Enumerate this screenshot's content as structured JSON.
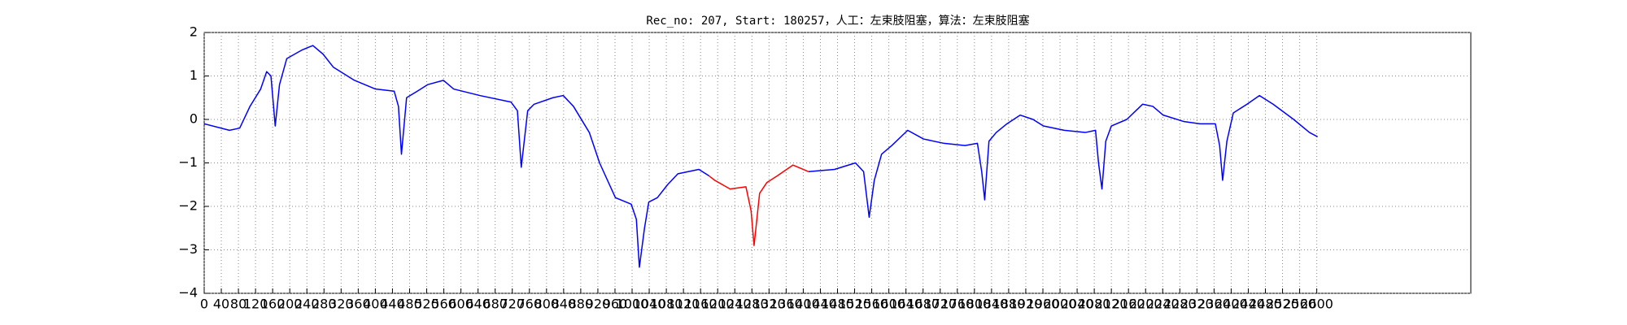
{
  "chart_data": {
    "type": "line",
    "title": "Rec_no: 207, Start: 180257，人工：左束肢阻塞，算法：左束肢阻塞",
    "x": [
      0,
      59,
      83,
      107,
      132,
      146,
      156,
      166,
      176,
      193,
      229,
      254,
      278,
      302,
      351,
      400,
      444,
      454,
      461,
      473,
      498,
      522,
      559,
      583,
      644,
      717,
      732,
      741,
      756,
      771,
      815,
      839,
      863,
      900,
      924,
      961,
      998,
      1010,
      1017,
      1029,
      1039,
      1059,
      1083,
      1107,
      1156,
      1180,
      1193,
      1229,
      1266,
      1278,
      1285,
      1298,
      1315,
      1339,
      1376,
      1412,
      1473,
      1522,
      1541,
      1554,
      1566,
      1583,
      1607,
      1644,
      1681,
      1729,
      1778,
      1807,
      1817,
      1824,
      1834,
      1851,
      1876,
      1907,
      1937,
      1961,
      2010,
      2059,
      2083,
      2090,
      2098,
      2107,
      2120,
      2156,
      2193,
      2217,
      2241,
      2290,
      2327,
      2363,
      2373,
      2380,
      2390,
      2405,
      2437,
      2466,
      2498,
      2546,
      2583,
      2602
    ],
    "series": [
      {
        "color": "#0000ff",
        "values": [
          -0.1,
          -0.25,
          -0.2,
          0.3,
          0.7,
          1.1,
          1.0,
          -0.15,
          0.8,
          1.4,
          1.6,
          1.7,
          1.5,
          1.2,
          0.9,
          0.7,
          0.65,
          0.3,
          -0.8,
          0.5,
          0.65,
          0.8,
          0.9,
          0.7,
          0.55,
          0.4,
          0.2,
          -1.1,
          0.2,
          0.35,
          0.5,
          0.55,
          0.3,
          -0.3,
          -1.0,
          -1.8,
          -1.95,
          -2.3,
          -3.4,
          -2.5,
          -1.9,
          -1.8,
          -1.5,
          -1.25,
          -1.15,
          -1.3,
          null,
          null,
          null,
          null,
          null,
          null,
          null,
          null,
          null,
          -1.2,
          -1.15,
          -1.0,
          -1.2,
          -2.25,
          -1.4,
          -0.8,
          -0.6,
          -0.25,
          -0.45,
          -0.55,
          -0.6,
          -0.55,
          -1.2,
          -1.85,
          -0.5,
          -0.3,
          -0.1,
          0.1,
          0.0,
          -0.15,
          -0.25,
          -0.3,
          -0.25,
          -1.0,
          -1.6,
          -0.5,
          -0.15,
          0.0,
          0.35,
          0.3,
          0.1,
          -0.05,
          -0.1,
          -0.1,
          -0.6,
          -1.4,
          -0.5,
          0.15,
          0.35,
          0.55,
          0.35,
          0.0,
          -0.3,
          -0.4
        ]
      },
      {
        "color": "#ff0000",
        "values": [
          null,
          null,
          null,
          null,
          null,
          null,
          null,
          null,
          null,
          null,
          null,
          null,
          null,
          null,
          null,
          null,
          null,
          null,
          null,
          null,
          null,
          null,
          null,
          null,
          null,
          null,
          null,
          null,
          null,
          null,
          null,
          null,
          null,
          null,
          null,
          null,
          null,
          null,
          null,
          null,
          null,
          null,
          null,
          null,
          null,
          -1.3,
          -1.4,
          -1.6,
          -1.55,
          -2.1,
          -2.9,
          -1.7,
          -1.45,
          -1.3,
          -1.05,
          -1.2,
          null,
          null,
          null,
          null,
          null,
          null,
          null,
          null,
          null,
          null,
          null,
          null,
          null,
          null,
          null,
          null,
          null,
          null,
          null,
          null,
          null,
          null,
          null,
          null,
          null,
          null,
          null,
          null,
          null,
          null,
          null,
          null,
          null,
          null,
          null,
          null,
          null,
          null,
          null,
          null,
          null,
          null,
          null,
          null
        ]
      }
    ],
    "xlim": [
      0,
      2960
    ],
    "xticks": [
      0,
      40,
      80,
      120,
      160,
      200,
      240,
      280,
      320,
      360,
      400,
      440,
      480,
      520,
      560,
      600,
      640,
      680,
      720,
      760,
      800,
      840,
      880,
      920,
      960,
      1000,
      1040,
      1080,
      1120,
      1160,
      1200,
      1240,
      1280,
      1320,
      1360,
      1400,
      1440,
      1480,
      1520,
      1560,
      1600,
      1640,
      1680,
      1720,
      1760,
      1800,
      1840,
      1880,
      1920,
      1960,
      2000,
      2040,
      2080,
      2120,
      2160,
      2200,
      2240,
      2280,
      2320,
      2360,
      2400,
      2440,
      2480,
      2520,
      2560,
      2600
    ],
    "ylim": [
      -4,
      2
    ],
    "yticks": [
      {
        "value": -4,
        "label": "−4"
      },
      {
        "value": -3,
        "label": "−3"
      },
      {
        "value": -2,
        "label": "−2"
      },
      {
        "value": -1,
        "label": "−1"
      },
      0,
      1,
      2
    ],
    "grid": true
  }
}
